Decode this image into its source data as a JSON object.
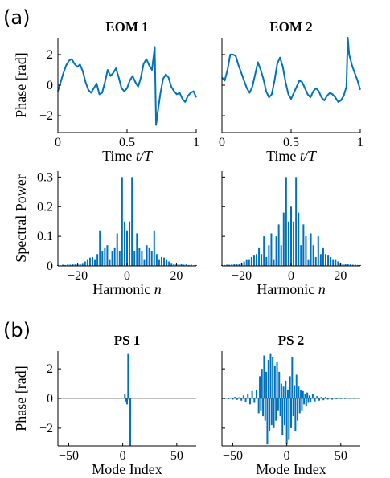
{
  "panel_labels": [
    "(a)",
    "(b)"
  ],
  "chart_data": [
    {
      "id": "eom1_time",
      "type": "line",
      "title": "EOM 1",
      "xlabel": "Time t/T",
      "ylabel": "Phase [rad]",
      "xlim": [
        0,
        1
      ],
      "ylim": [
        -3.1,
        3.1
      ],
      "xticks": [
        0,
        0.5,
        1
      ],
      "xtick_labels": [
        "0",
        "0.5",
        "1"
      ],
      "yticks": [
        -2,
        0,
        2
      ],
      "ytick_labels": [
        "−2",
        "0",
        "2"
      ],
      "color": "#0072BD",
      "x": [
        0,
        0.02,
        0.04,
        0.06,
        0.08,
        0.1,
        0.12,
        0.14,
        0.16,
        0.18,
        0.2,
        0.22,
        0.24,
        0.26,
        0.28,
        0.3,
        0.32,
        0.34,
        0.36,
        0.38,
        0.4,
        0.42,
        0.44,
        0.46,
        0.48,
        0.5,
        0.52,
        0.54,
        0.56,
        0.58,
        0.6,
        0.62,
        0.64,
        0.66,
        0.68,
        0.7,
        0.71,
        0.72,
        0.74,
        0.76,
        0.78,
        0.8,
        0.82,
        0.84,
        0.86,
        0.88,
        0.9,
        0.92,
        0.94,
        0.96,
        0.98,
        1.0
      ],
      "y": [
        -0.4,
        0.2,
        0.8,
        1.3,
        1.6,
        1.7,
        1.4,
        1.2,
        1.35,
        0.9,
        0.2,
        -0.3,
        -0.5,
        -0.2,
        0.1,
        -0.6,
        -0.5,
        0.2,
        1.0,
        0.6,
        0.8,
        1.1,
        0.5,
        -0.2,
        -0.4,
        -0.2,
        0.3,
        0.6,
        0.2,
        -0.1,
        0.5,
        1.4,
        1.7,
        1.3,
        1.0,
        2.5,
        -2.6,
        -1.9,
        -0.6,
        0.4,
        0.7,
        0.5,
        -0.1,
        -0.4,
        -0.6,
        -0.5,
        -0.9,
        -1.1,
        -0.7,
        -0.5,
        -0.4,
        -0.8
      ]
    },
    {
      "id": "eom2_time",
      "type": "line",
      "title": "EOM 2",
      "xlabel": "Time t/T",
      "ylabel": "",
      "xlim": [
        0,
        1
      ],
      "ylim": [
        -3.1,
        3.1
      ],
      "xticks": [
        0,
        0.5,
        1
      ],
      "xtick_labels": [
        "0",
        "0.5",
        "1"
      ],
      "yticks": [
        -2,
        0,
        2
      ],
      "ytick_labels": [],
      "color": "#0072BD",
      "x": [
        0,
        0.02,
        0.04,
        0.06,
        0.08,
        0.1,
        0.12,
        0.14,
        0.16,
        0.18,
        0.2,
        0.22,
        0.24,
        0.26,
        0.28,
        0.3,
        0.32,
        0.34,
        0.36,
        0.38,
        0.4,
        0.42,
        0.44,
        0.46,
        0.48,
        0.5,
        0.52,
        0.54,
        0.56,
        0.58,
        0.6,
        0.62,
        0.64,
        0.66,
        0.68,
        0.7,
        0.72,
        0.74,
        0.76,
        0.78,
        0.8,
        0.82,
        0.84,
        0.86,
        0.88,
        0.9,
        0.91,
        0.92,
        0.94,
        0.96,
        0.98,
        1.0
      ],
      "y": [
        0.5,
        0.3,
        1.0,
        2.0,
        2.0,
        1.9,
        1.3,
        0.8,
        0.3,
        -0.2,
        -0.5,
        -0.1,
        0.7,
        1.5,
        1.0,
        0.4,
        -0.4,
        -0.8,
        -0.6,
        0.3,
        1.4,
        1.8,
        1.2,
        0.2,
        -0.6,
        -0.9,
        -0.5,
        -0.1,
        0.3,
        0.2,
        -0.2,
        -0.6,
        -0.8,
        -0.4,
        -0.2,
        -0.4,
        -0.8,
        -1.0,
        -0.7,
        -0.5,
        -0.6,
        -0.8,
        -1.1,
        -1.0,
        -0.7,
        -0.1,
        3.1,
        2.0,
        1.3,
        0.8,
        0.3,
        -0.3
      ]
    },
    {
      "id": "eom1_spectrum",
      "type": "bar",
      "title": "",
      "xlabel": "Harmonic n",
      "ylabel": "Spectral Power",
      "xlim": [
        -28,
        28
      ],
      "ylim": [
        0,
        0.32
      ],
      "xticks": [
        -20,
        0,
        20
      ],
      "xtick_labels": [
        "−20",
        "0",
        "20"
      ],
      "yticks": [
        0,
        0.1,
        0.2,
        0.3
      ],
      "ytick_labels": [
        "0",
        "0.1",
        "0.2",
        "0.3"
      ],
      "color": "#0072BD",
      "x": [
        -28,
        -27,
        -26,
        -25,
        -24,
        -23,
        -22,
        -21,
        -20,
        -19,
        -18,
        -17,
        -16,
        -15,
        -14,
        -13,
        -12,
        -11,
        -10,
        -9,
        -8,
        -7,
        -6,
        -5,
        -4,
        -3,
        -2,
        -1,
        0,
        1,
        2,
        3,
        4,
        5,
        6,
        7,
        8,
        9,
        10,
        11,
        12,
        13,
        14,
        15,
        16,
        17,
        18,
        19,
        20,
        21,
        22,
        23,
        24,
        25,
        26,
        27,
        28
      ],
      "y": [
        0.003,
        0.002,
        0.004,
        0.003,
        0.005,
        0.004,
        0.006,
        0.005,
        0.008,
        0.006,
        0.01,
        0.015,
        0.02,
        0.028,
        0.03,
        0.02,
        0.04,
        0.12,
        0.05,
        0.06,
        0.07,
        0.02,
        0.05,
        0.06,
        0.11,
        0.05,
        0.3,
        0.15,
        0.12,
        0.15,
        0.3,
        0.05,
        0.11,
        0.06,
        0.05,
        0.02,
        0.07,
        0.06,
        0.05,
        0.12,
        0.04,
        0.02,
        0.03,
        0.028,
        0.02,
        0.015,
        0.01,
        0.006,
        0.008,
        0.005,
        0.006,
        0.004,
        0.005,
        0.003,
        0.004,
        0.002,
        0.003
      ]
    },
    {
      "id": "eom2_spectrum",
      "type": "bar",
      "title": "",
      "xlabel": "Harmonic n",
      "ylabel": "",
      "xlim": [
        -28,
        28
      ],
      "ylim": [
        0,
        0.32
      ],
      "xticks": [
        -20,
        0,
        20
      ],
      "xtick_labels": [
        "−20",
        "0",
        "20"
      ],
      "yticks": [
        0,
        0.1,
        0.2,
        0.3
      ],
      "ytick_labels": [],
      "color": "#0072BD",
      "x": [
        -28,
        -27,
        -26,
        -25,
        -24,
        -23,
        -22,
        -21,
        -20,
        -19,
        -18,
        -17,
        -16,
        -15,
        -14,
        -13,
        -12,
        -11,
        -10,
        -9,
        -8,
        -7,
        -6,
        -5,
        -4,
        -3,
        -2,
        -1,
        0,
        1,
        2,
        3,
        4,
        5,
        6,
        7,
        8,
        9,
        10,
        11,
        12,
        13,
        14,
        15,
        16,
        17,
        18,
        19,
        20,
        21,
        22,
        23,
        24,
        25,
        26,
        27,
        28
      ],
      "y": [
        0.003,
        0.003,
        0.004,
        0.004,
        0.005,
        0.006,
        0.008,
        0.007,
        0.01,
        0.015,
        0.02,
        0.02,
        0.03,
        0.035,
        0.04,
        0.06,
        0.04,
        0.1,
        0.03,
        0.07,
        0.11,
        0.02,
        0.1,
        0.14,
        0.07,
        0.18,
        0.3,
        0.15,
        0.2,
        0.15,
        0.3,
        0.18,
        0.07,
        0.14,
        0.1,
        0.02,
        0.11,
        0.07,
        0.03,
        0.1,
        0.04,
        0.06,
        0.04,
        0.035,
        0.03,
        0.02,
        0.02,
        0.015,
        0.01,
        0.007,
        0.008,
        0.006,
        0.005,
        0.004,
        0.004,
        0.003,
        0.003
      ]
    },
    {
      "id": "ps1",
      "type": "bar",
      "title": "PS 1",
      "xlabel": "Mode Index",
      "ylabel": "Phase [rad]",
      "xlim": [
        -60,
        68
      ],
      "ylim": [
        -3.2,
        3.2
      ],
      "xticks": [
        -50,
        0,
        50
      ],
      "xtick_labels": [
        "−50",
        "0",
        "50"
      ],
      "yticks": [
        -2,
        0,
        2
      ],
      "ytick_labels": [
        "−2",
        "0",
        "2"
      ],
      "color": "#0072BD",
      "x": [
        2,
        3,
        4,
        5,
        6,
        7
      ],
      "y": [
        0.3,
        -0.2,
        -0.4,
        3.0,
        -0.1,
        -3.2
      ]
    },
    {
      "id": "ps2",
      "type": "bar",
      "title": "PS 2",
      "xlabel": "Mode Index",
      "ylabel": "",
      "xlim": [
        -60,
        68
      ],
      "ylim": [
        -3.2,
        3.2
      ],
      "xticks": [
        -50,
        0,
        50
      ],
      "xtick_labels": [
        "−50",
        "0",
        "50"
      ],
      "yticks": [
        -2,
        0,
        2
      ],
      "ytick_labels": [],
      "color": "#0072BD",
      "x": [
        -58,
        -56,
        -54,
        -52,
        -50,
        -48,
        -46,
        -44,
        -42,
        -40,
        -38,
        -36,
        -34,
        -32,
        -30,
        -28,
        -26,
        -25,
        -24,
        -23,
        -22,
        -21,
        -20,
        -19,
        -18,
        -17,
        -16,
        -15,
        -14,
        -13,
        -12,
        -11,
        -10,
        -9,
        -8,
        -7,
        -6,
        -5,
        -4,
        -3,
        -2,
        -1,
        0,
        1,
        2,
        3,
        4,
        5,
        6,
        7,
        8,
        9,
        10,
        11,
        12,
        13,
        14,
        15,
        16,
        17,
        18,
        19,
        20,
        21,
        22,
        24,
        26,
        28,
        30,
        32,
        34,
        36,
        38,
        40,
        42,
        44,
        46,
        48,
        50,
        52,
        54,
        56,
        58,
        60,
        62,
        64,
        66
      ],
      "y": [
        -0.05,
        0.05,
        -0.05,
        0.06,
        -0.08,
        0.1,
        -0.1,
        0.08,
        -0.15,
        0.2,
        -0.25,
        0.3,
        -0.4,
        0.5,
        -0.3,
        0.6,
        -1.0,
        1.5,
        -0.8,
        2.0,
        -1.2,
        2.9,
        -1.5,
        1.8,
        -3.1,
        2.6,
        -2.2,
        3.0,
        -1.8,
        2.8,
        -2.0,
        2.2,
        -1.5,
        2.5,
        -0.8,
        1.8,
        -1.2,
        1.0,
        -2.5,
        0.8,
        -1.8,
        1.2,
        -3.1,
        0.6,
        -2.8,
        1.5,
        -2.0,
        2.8,
        -1.2,
        0.9,
        -2.2,
        1.6,
        -1.5,
        0.8,
        -1.0,
        0.6,
        -0.8,
        0.5,
        -0.4,
        0.3,
        -0.5,
        0.4,
        -0.3,
        0.2,
        -0.25,
        0.3,
        -0.2,
        0.15,
        -0.15,
        0.1,
        -0.12,
        0.1,
        -0.08,
        0.06,
        -0.08,
        0.05,
        -0.05,
        0.06,
        -0.04,
        0.05,
        -0.04,
        0.03,
        -0.03,
        0.04,
        -0.03,
        0.02,
        -0.02
      ]
    }
  ]
}
